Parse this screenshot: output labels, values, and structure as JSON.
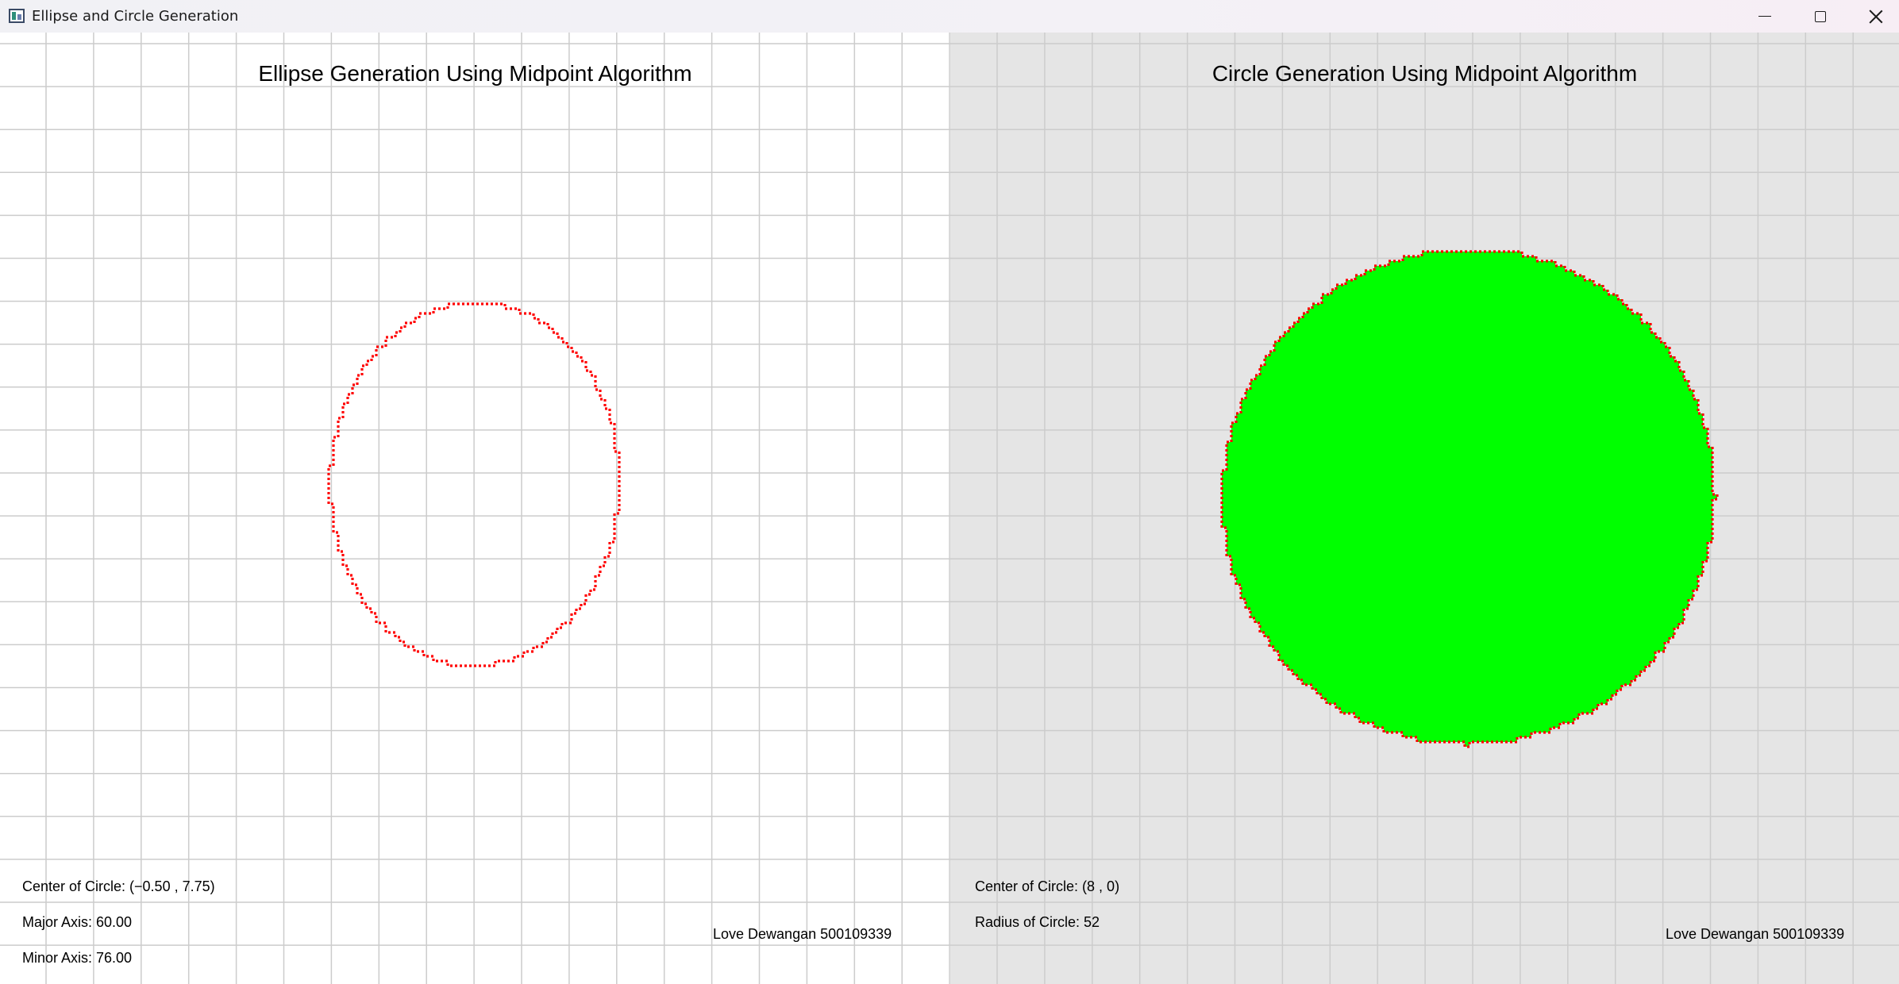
{
  "window": {
    "title": "Ellipse and Circle Generation",
    "icons": {
      "app": "app-window-icon",
      "minimize": "minimize-icon",
      "maximize": "maximize-icon",
      "close": "close-icon"
    }
  },
  "colors": {
    "left_background": "#ffffff",
    "right_background": "#e5e5e5",
    "grid_line": "#cccccc",
    "outline": "#ff0000",
    "fill": "#00ff00"
  },
  "ellipse_panel": {
    "title": "Ellipse Generation Using Midpoint Algorithm",
    "center_label": "Center of Circle: (−0.50 , 7.75)",
    "major_label": "Major Axis: 60.00",
    "minor_label": "Minor Axis: 76.00",
    "author": "Love Dewangan 500109339",
    "outline": "dotted red"
  },
  "circle_panel": {
    "title": "Circle Generation Using Midpoint Algorithm",
    "center_label": "Center of Circle: (8 , 0)",
    "radius_label": "Radius of Circle: 52",
    "author": "Love Dewangan 500109339",
    "fill": "solid green",
    "outline": "dotted red"
  }
}
